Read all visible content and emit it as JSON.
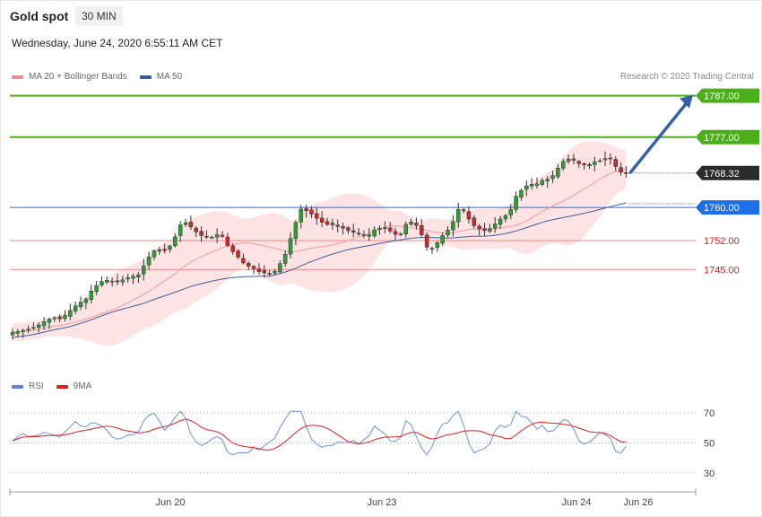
{
  "header": {
    "title": "Gold spot",
    "timeframe": "30 MIN",
    "datetime": "Wednesday, June 24, 2020 6:55:11 AM CET"
  },
  "price_legend": [
    {
      "label": "MA 20 + Bollinger Bands",
      "color": "#f58c8c"
    },
    {
      "label": "MA 50",
      "color": "#3a5f9e"
    }
  ],
  "rsi_legend": [
    {
      "label": "RSI",
      "color": "#5b82e0"
    },
    {
      "label": "9MA",
      "color": "#e02020"
    }
  ],
  "credit": "Research © 2020 Trading Central",
  "chart_data": {
    "type": "candlestick",
    "ylim": [
      1736,
      1790
    ],
    "levels": [
      {
        "value": 1787.0,
        "label": "1787.00",
        "color": "#4caf1a",
        "kind": "resistance"
      },
      {
        "value": 1777.0,
        "label": "1777.00",
        "color": "#4caf1a",
        "kind": "resistance"
      },
      {
        "value": 1760.0,
        "label": "1760.00",
        "color": "#1e6fe8",
        "kind": "pivot"
      },
      {
        "value": 1752.0,
        "label": "1752.00",
        "color": "#f08a8a",
        "kind": "support"
      },
      {
        "value": 1745.0,
        "label": "1745.00",
        "color": "#f08a8a",
        "kind": "support"
      }
    ],
    "last_price": {
      "value": 1768.32,
      "label": "1768.32"
    },
    "arrow": {
      "from": 1768.5,
      "to": 1787.0
    },
    "x_ticks": [
      "Jun 20",
      "Jun 23",
      "Jun 24",
      "Jun 26"
    ],
    "price_path": [
      1729.8,
      1730,
      1730.3,
      1730.6,
      1731,
      1731.6,
      1732.4,
      1733,
      1733.3,
      1733.1,
      1733.9,
      1735.1,
      1736.2,
      1737.1,
      1737.9,
      1739.8,
      1741.1,
      1742.1,
      1742.4,
      1742.2,
      1742,
      1742.5,
      1743,
      1743.4,
      1743.7,
      1745.9,
      1748,
      1749.5,
      1749.8,
      1749.6,
      1750.7,
      1752.9,
      1755.8,
      1756.3,
      1755.3,
      1754.1,
      1753.2,
      1753,
      1752.8,
      1753.5,
      1753,
      1750.8,
      1749.3,
      1748,
      1746.6,
      1745.8,
      1745.2,
      1744.5,
      1744.2,
      1743.9,
      1744.6,
      1746.4,
      1748.7,
      1752.5,
      1756.4,
      1759.6,
      1759.2,
      1758.4,
      1757.4,
      1756.4,
      1755.9,
      1755.8,
      1755.4,
      1755,
      1754.4,
      1754,
      1753.6,
      1753.3,
      1753.4,
      1754.6,
      1755,
      1755.1,
      1754.3,
      1753.5,
      1753.6,
      1755.9,
      1756.5,
      1755.6,
      1753.4,
      1750.4,
      1750.1,
      1751.5,
      1753.2,
      1754.5,
      1756.6,
      1759.5,
      1759.2,
      1757.2,
      1755.6,
      1754.8,
      1754.4,
      1754.9,
      1756,
      1757.2,
      1758,
      1759.5,
      1762.7,
      1764.1,
      1765.2,
      1765.6,
      1765.7,
      1766.5,
      1766.8,
      1767.7,
      1769.5,
      1771.1,
      1771.7,
      1771.4,
      1770.6,
      1770.3,
      1770.4,
      1771,
      1771.3,
      1771.8,
      1771.9,
      1769.9,
      1768.5,
      1768.3
    ],
    "rsi": {
      "ylim": [
        25,
        75
      ],
      "ticks": [
        70,
        50,
        30
      ]
    }
  }
}
